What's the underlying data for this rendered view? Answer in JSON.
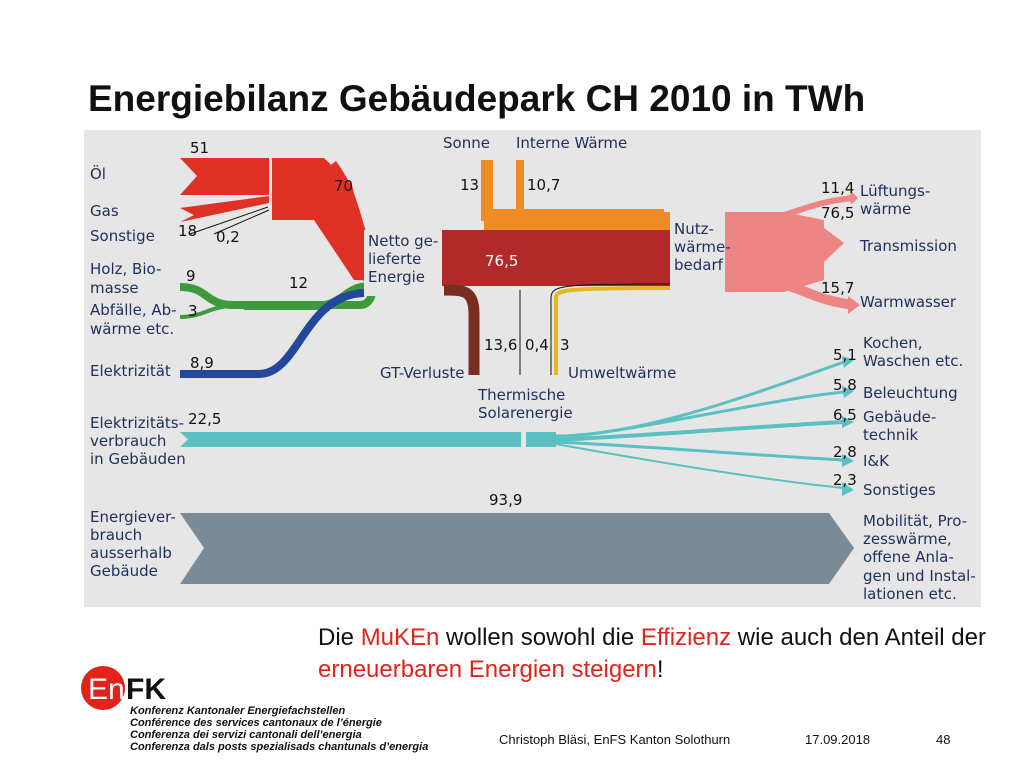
{
  "slide": {
    "title": "Energiebilanz Gebäudepark CH 2010 in TWh"
  },
  "colors": {
    "oil_red": "#e03127",
    "net_energy_dark_red": "#b22a28",
    "losses_brown": "#7a2e22",
    "solar_orange": "#ee8c23",
    "biomass_green": "#3c9a3c",
    "electricity_blue": "#23479a",
    "useful_pink": "#ee8585",
    "consumption_teal": "#5bc0c2",
    "outside_grey": "#7b8a97",
    "thermal_solar_yellow": "#e8b71e",
    "diagram_background": "#e6e6e6",
    "highlight_red": "#e2231a"
  },
  "diagram": {
    "sources": {
      "oel": {
        "label": "Öl",
        "value": "51"
      },
      "gas": {
        "label": "Gas",
        "value": ""
      },
      "sonstige": {
        "label": "Sonstige",
        "value": "18",
        "extra_value": "0,2"
      },
      "holz": {
        "label_line1": "Holz, Bio-",
        "label_line2": "masse",
        "value": "9"
      },
      "abfaelle": {
        "label_line1": "Abfälle, Ab-",
        "label_line2": "wärme etc.",
        "value": "3"
      },
      "elektrizitaet": {
        "label": "Elektrizität",
        "value": "8,9"
      }
    },
    "fossil_total": "70",
    "renewable_total": "12",
    "sonne": {
      "label": "Sonne",
      "value": "13"
    },
    "interne_waerme": {
      "label": "Interne Wärme",
      "value": "10,7"
    },
    "netto": {
      "label_line1": "Netto ge-",
      "label_line2": "lieferte",
      "label_line3": "Energie",
      "value": "76,5"
    },
    "gt_verluste": {
      "label": "GT-Verluste",
      "value": "13,6"
    },
    "thermische_solar": {
      "label_line1": "Thermische",
      "label_line2": "Solarenergie",
      "value": "0,4"
    },
    "umweltwaerme": {
      "label": "Umweltwärme",
      "value": "3"
    },
    "nutzwaerme": {
      "label_line1": "Nutz-",
      "label_line2": "wärme-",
      "label_line3": "bedarf"
    },
    "outputs": {
      "lueftung": {
        "label_line1": "Lüftungs-",
        "label_line2": "wärme",
        "value": "11,4"
      },
      "transmission": {
        "label": "Transmission",
        "value": "76,5"
      },
      "warmwasser": {
        "label": "Warmwasser",
        "value": "15,7"
      }
    },
    "electricity_use": {
      "label_line1": "Elektrizitäts-",
      "label_line2": "verbrauch",
      "label_line3": "in Gebäuden",
      "value": "22,5",
      "branches": [
        {
          "label_line1": "Kochen,",
          "label_line2": "Waschen etc.",
          "value": "5,1"
        },
        {
          "label_line1": "Beleuchtung",
          "label_line2": "",
          "value": "5,8"
        },
        {
          "label_line1": "Gebäude-",
          "label_line2": "technik",
          "value": "6,5"
        },
        {
          "label_line1": "I&K",
          "label_line2": "",
          "value": "2,8"
        },
        {
          "label_line1": "Sonstiges",
          "label_line2": "",
          "value": "2,3"
        }
      ]
    },
    "outside": {
      "label_line1": "Energiever-",
      "label_line2": "brauch",
      "label_line3": "ausserhalb",
      "label_line4": "Gebäude",
      "value": "93,9",
      "dest_line1": "Mobilität, Pro-",
      "dest_line2": "zesswärme,",
      "dest_line3": "offene Anla-",
      "dest_line4": "gen und Instal-",
      "dest_line5": "lationen etc."
    }
  },
  "message": {
    "p1": "Die ",
    "h1": "MuKEn",
    "p2": " wollen sowohl die ",
    "h2": "Effizienz",
    "p3": " wie auch den Anteil der ",
    "h3": "erneuerbaren Energien steigern",
    "p4": "!"
  },
  "logo": {
    "text_en": "En",
    "text_fk": "FK"
  },
  "organization": {
    "line_de": "Konferenz Kantonaler Energiefachstellen",
    "line_fr": "Conférence des services cantonaux de l’énergie",
    "line_it": "Conferenza dei servizi cantonali dell’energia",
    "line_rm": "Conferenza dals posts spezialisads chantunals d’energia"
  },
  "footer": {
    "author": "Christoph Bläsi, EnFS Kanton Solothurn",
    "date": "17.09.2018",
    "page": "48"
  }
}
